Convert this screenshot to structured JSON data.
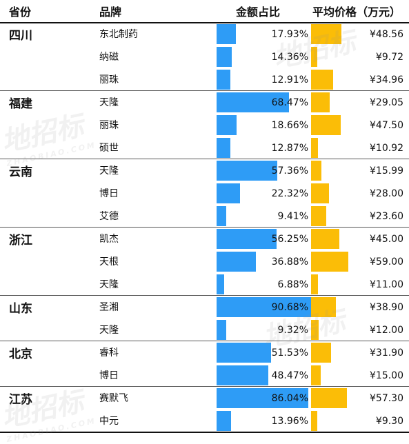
{
  "header": {
    "province": "省份",
    "brand": "品牌",
    "share": "金额占比",
    "price": "平均价格（万元）"
  },
  "watermark": {
    "text": "地招标",
    "sub": "ZHAOBIAO.COM"
  },
  "chart_data": {
    "type": "table",
    "share_max_percent": 100,
    "price_max": 59.0,
    "colors": {
      "share_bar": "#2e9cf6",
      "price_bar": "#fbbd07"
    },
    "groups": [
      {
        "province": "四川",
        "rows": [
          {
            "brand": "东北制药",
            "share": 17.93,
            "share_label": "17.93%",
            "price": 48.56,
            "price_label": "¥48.56"
          },
          {
            "brand": "纳磁",
            "share": 14.36,
            "share_label": "14.36%",
            "price": 9.72,
            "price_label": "¥9.72"
          },
          {
            "brand": "丽珠",
            "share": 12.91,
            "share_label": "12.91%",
            "price": 34.96,
            "price_label": "¥34.96"
          }
        ]
      },
      {
        "province": "福建",
        "rows": [
          {
            "brand": "天隆",
            "share": 68.47,
            "share_label": "68.47%",
            "price": 29.05,
            "price_label": "¥29.05"
          },
          {
            "brand": "丽珠",
            "share": 18.66,
            "share_label": "18.66%",
            "price": 47.5,
            "price_label": "¥47.50"
          },
          {
            "brand": "硕世",
            "share": 12.87,
            "share_label": "12.87%",
            "price": 10.92,
            "price_label": "¥10.92"
          }
        ]
      },
      {
        "province": "云南",
        "rows": [
          {
            "brand": "天隆",
            "share": 57.36,
            "share_label": "57.36%",
            "price": 15.99,
            "price_label": "¥15.99"
          },
          {
            "brand": "博日",
            "share": 22.32,
            "share_label": "22.32%",
            "price": 28.0,
            "price_label": "¥28.00"
          },
          {
            "brand": "艾德",
            "share": 9.41,
            "share_label": "9.41%",
            "price": 23.6,
            "price_label": "¥23.60"
          }
        ]
      },
      {
        "province": "浙江",
        "rows": [
          {
            "brand": "凯杰",
            "share": 56.25,
            "share_label": "56.25%",
            "price": 45.0,
            "price_label": "¥45.00"
          },
          {
            "brand": "天根",
            "share": 36.88,
            "share_label": "36.88%",
            "price": 59.0,
            "price_label": "¥59.00"
          },
          {
            "brand": "天隆",
            "share": 6.88,
            "share_label": "6.88%",
            "price": 11.0,
            "price_label": "¥11.00"
          }
        ]
      },
      {
        "province": "山东",
        "rows": [
          {
            "brand": "圣湘",
            "share": 90.68,
            "share_label": "90.68%",
            "price": 38.9,
            "price_label": "¥38.90"
          },
          {
            "brand": "天隆",
            "share": 9.32,
            "share_label": "9.32%",
            "price": 12.0,
            "price_label": "¥12.00"
          }
        ]
      },
      {
        "province": "北京",
        "rows": [
          {
            "brand": "睿科",
            "share": 51.53,
            "share_label": "51.53%",
            "price": 31.9,
            "price_label": "¥31.90"
          },
          {
            "brand": "博日",
            "share": 48.47,
            "share_label": "48.47%",
            "price": 15.0,
            "price_label": "¥15.00"
          }
        ]
      },
      {
        "province": "江苏",
        "rows": [
          {
            "brand": "赛默飞",
            "share": 86.04,
            "share_label": "86.04%",
            "price": 57.3,
            "price_label": "¥57.30"
          },
          {
            "brand": "中元",
            "share": 13.96,
            "share_label": "13.96%",
            "price": 9.3,
            "price_label": "¥9.30"
          }
        ]
      }
    ]
  }
}
